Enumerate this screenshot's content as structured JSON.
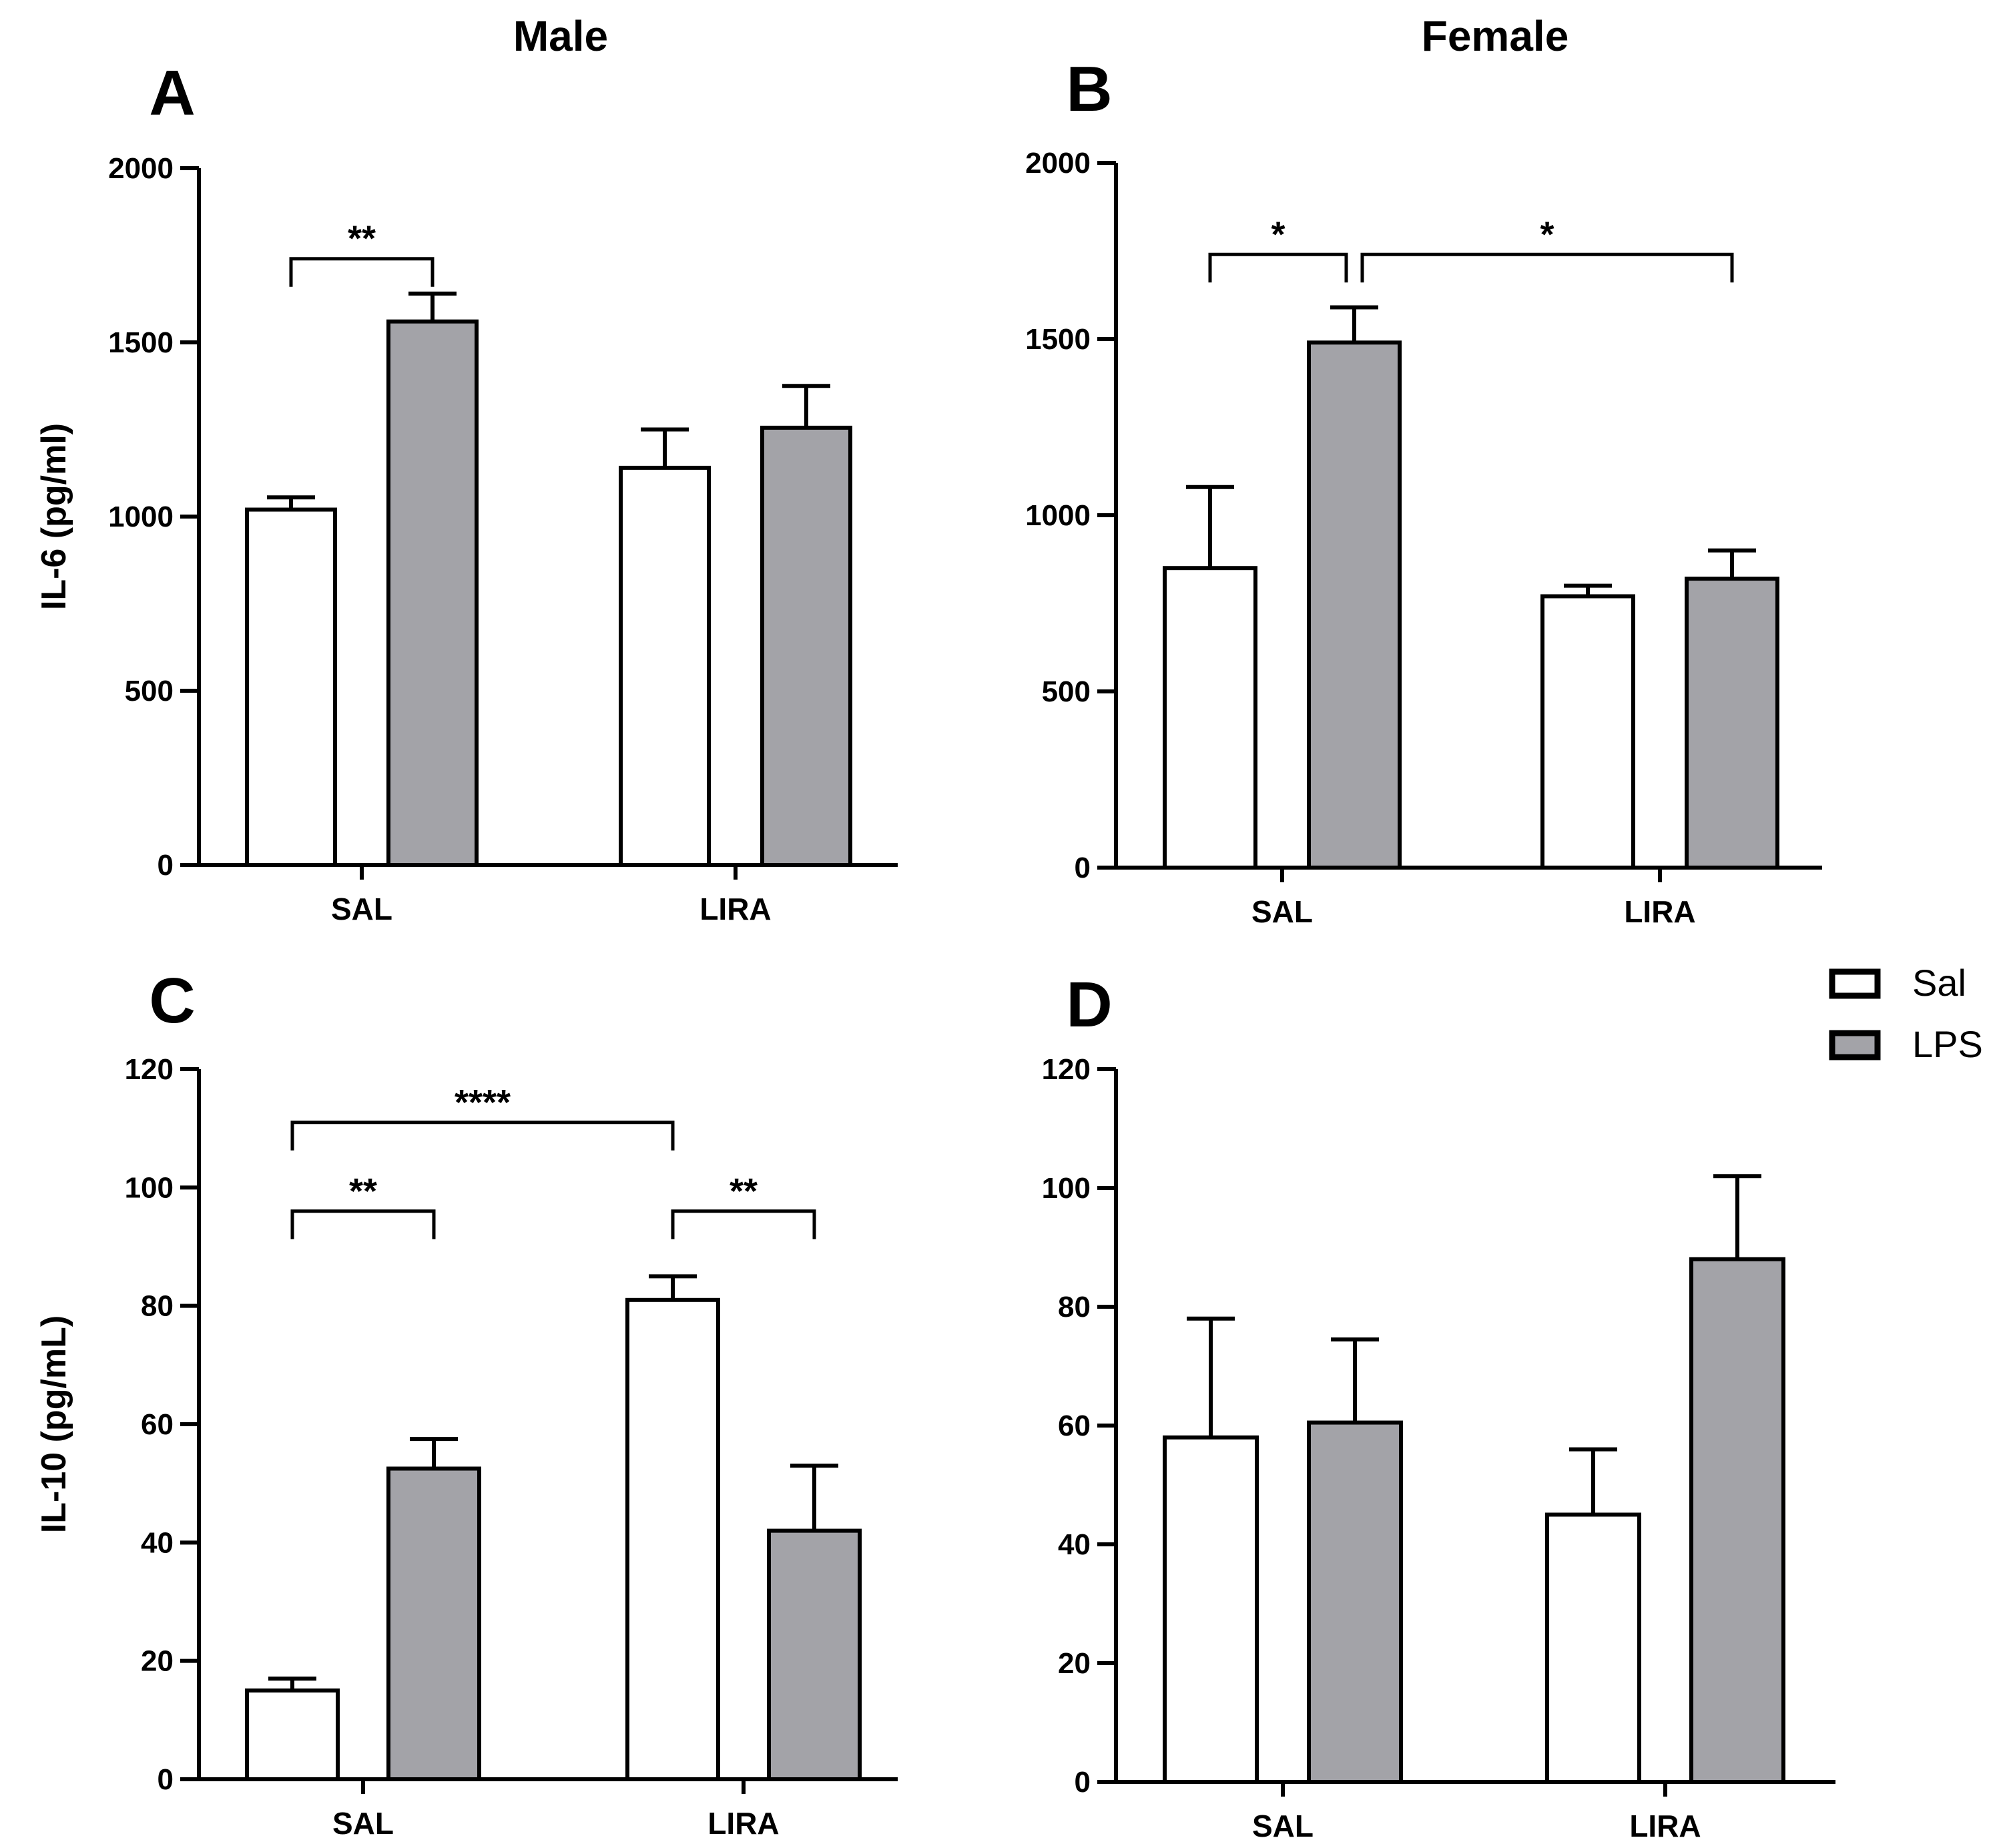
{
  "figure": {
    "column_titles": [
      "Male",
      "Female"
    ]
  },
  "legend": {
    "entries": [
      {
        "label": "Sal",
        "color": "#ffffff"
      },
      {
        "label": "LPS",
        "color": "#a3a3a8"
      }
    ]
  },
  "chart_data": [
    {
      "type": "bar",
      "panel": "A",
      "ylabel": "IL-6 (pg/ml)",
      "ylim": [
        0,
        2000
      ],
      "yticks": [
        0,
        500,
        1000,
        1500,
        2000
      ],
      "categories": [
        "SAL",
        "LIRA"
      ],
      "series": [
        {
          "name": "Sal",
          "values": [
            1020,
            1140
          ],
          "errors": [
            35,
            110
          ]
        },
        {
          "name": "LPS",
          "values": [
            1560,
            1255
          ],
          "errors": [
            80,
            120
          ]
        }
      ],
      "significance": [
        {
          "from": [
            0,
            0
          ],
          "to": [
            0,
            1
          ],
          "label": "**"
        }
      ]
    },
    {
      "type": "bar",
      "panel": "B",
      "ylabel": "",
      "ylim": [
        0,
        2000
      ],
      "yticks": [
        0,
        500,
        1000,
        1500,
        2000
      ],
      "categories": [
        "SAL",
        "LIRA"
      ],
      "series": [
        {
          "name": "Sal",
          "values": [
            850,
            770
          ],
          "errors": [
            230,
            30
          ]
        },
        {
          "name": "LPS",
          "values": [
            1490,
            820
          ],
          "errors": [
            100,
            80
          ]
        }
      ],
      "significance": [
        {
          "from": [
            0,
            0
          ],
          "to": [
            0,
            1
          ],
          "label": "*"
        },
        {
          "from": [
            0,
            1
          ],
          "to": [
            1,
            1
          ],
          "label": "*"
        }
      ]
    },
    {
      "type": "bar",
      "panel": "C",
      "ylabel": "IL-10 (pg/mL)",
      "ylim": [
        0,
        120
      ],
      "yticks": [
        0,
        20,
        40,
        60,
        80,
        100,
        120
      ],
      "categories": [
        "SAL",
        "LIRA"
      ],
      "series": [
        {
          "name": "Sal",
          "values": [
            15,
            81
          ],
          "errors": [
            2,
            4
          ]
        },
        {
          "name": "LPS",
          "values": [
            52.5,
            42
          ],
          "errors": [
            5,
            11
          ]
        }
      ],
      "significance": [
        {
          "from": [
            0,
            0
          ],
          "to": [
            1,
            0
          ],
          "label": "****"
        },
        {
          "from": [
            0,
            0
          ],
          "to": [
            0,
            1
          ],
          "label": "**"
        },
        {
          "from": [
            1,
            0
          ],
          "to": [
            1,
            1
          ],
          "label": "**"
        }
      ]
    },
    {
      "type": "bar",
      "panel": "D",
      "ylabel": "",
      "ylim": [
        0,
        120
      ],
      "yticks": [
        0,
        20,
        40,
        60,
        80,
        100,
        120
      ],
      "categories": [
        "SAL",
        "LIRA"
      ],
      "series": [
        {
          "name": "Sal",
          "values": [
            58,
            45
          ],
          "errors": [
            20,
            11
          ]
        },
        {
          "name": "LPS",
          "values": [
            60.5,
            88
          ],
          "errors": [
            14,
            14
          ]
        }
      ],
      "significance": []
    }
  ]
}
